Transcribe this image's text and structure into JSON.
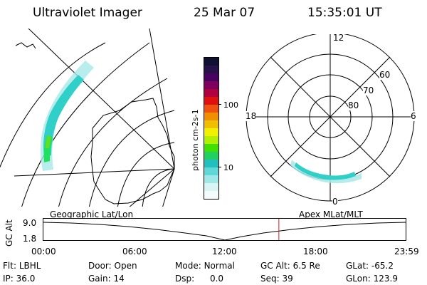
{
  "header": {
    "instrument": "Ultraviolet Imager",
    "date": "25 Mar 07",
    "time": "15:35:01 UT"
  },
  "colors": {
    "aurora": "#30d0c8",
    "aurora_bright": "#20e020",
    "marker": "#d02020"
  },
  "colorbar": {
    "label": "photon cm-2s-1",
    "ticks": [
      "100",
      "10"
    ],
    "colors": [
      "#101030",
      "#281048",
      "#4a0060",
      "#800060",
      "#b00040",
      "#e01010",
      "#f05010",
      "#f09000",
      "#f0c000",
      "#f0f000",
      "#b0f000",
      "#40e000",
      "#20d060",
      "#20c0c0",
      "#60d8d8",
      "#a0e8e8",
      "#d8f4f4",
      "#f4fbfb"
    ]
  },
  "left_map": {
    "label": "Geographic Lat/Lon"
  },
  "polar_plot": {
    "label": "Apex MLat/MLT",
    "mlt_labels": {
      "top": "12",
      "left": "18",
      "right": "6",
      "bottom": "0"
    },
    "lat_labels": [
      "60",
      "70",
      "80"
    ]
  },
  "altitude_plot": {
    "ylabel": "GC Alt",
    "ytick_top": "9.0",
    "ytick_bottom": "1.8",
    "xticks": [
      "00:00",
      "06:00",
      "12:00",
      "18:00",
      "23:59"
    ],
    "current_time_fraction": 0.65
  },
  "status": {
    "filter_label": "Flt:",
    "filter_value": "LBHL",
    "ip_label": "IP:",
    "ip_value": "36.0",
    "door_label": "Door:",
    "door_value": "Open",
    "gain_label": "Gain:",
    "gain_value": "14",
    "mode_label": "Mode:",
    "mode_value": "Normal",
    "dsp_label": "Dsp:",
    "dsp_value": "0.0",
    "gcalt_label": "GC Alt:",
    "gcalt_value": "6.5 Re",
    "seq_label": "Seq:",
    "seq_value": "39",
    "glat_label": "GLat:",
    "glat_value": "-65.2",
    "glon_label": "GLon:",
    "glon_value": "123.9"
  }
}
